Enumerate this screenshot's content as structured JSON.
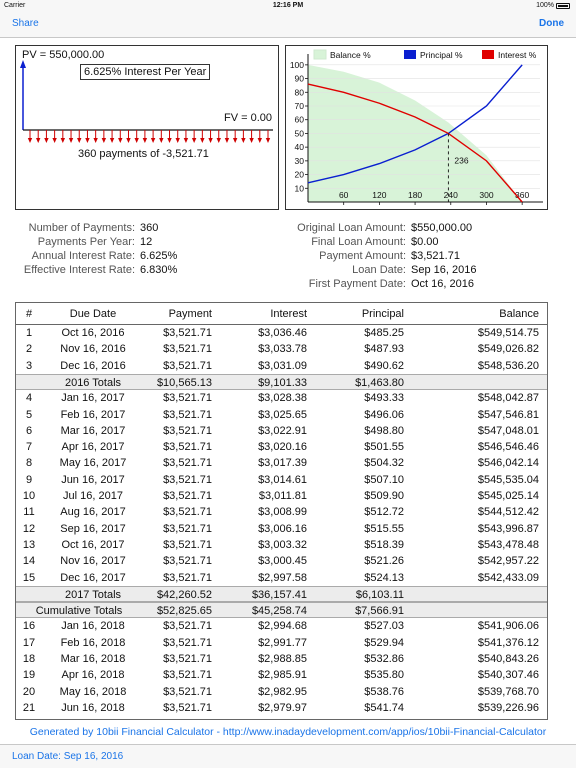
{
  "status": {
    "carrier": "Carrier",
    "time": "12:16 PM",
    "battery": "100%"
  },
  "nav": {
    "share": "Share",
    "done": "Done"
  },
  "timeline": {
    "pv": "PV = 550,000.00",
    "interest": "6.625% Interest Per Year",
    "fv": "FV = 0.00",
    "payments": "360 payments of -3,521.71"
  },
  "chart_data": {
    "type": "line",
    "legend": [
      "Balance %",
      "Principal %",
      "Interest %"
    ],
    "legend_position": "top",
    "colors": {
      "balance": "#d8f3d8",
      "principal": "#0a1fd0",
      "interest": "#e00000"
    },
    "x_ticks": [
      60,
      120,
      180,
      240,
      300,
      360
    ],
    "y_ticks": [
      10,
      20,
      30,
      40,
      50,
      60,
      70,
      80,
      90,
      100
    ],
    "xlim": [
      0,
      390
    ],
    "ylim": [
      0,
      105
    ],
    "crossover_label": "236",
    "crossover_x": 236,
    "series": [
      {
        "name": "Balance %",
        "x": [
          0,
          60,
          120,
          180,
          236,
          300,
          360
        ],
        "y": [
          100,
          95,
          87,
          74,
          58,
          34,
          0
        ]
      },
      {
        "name": "Principal %",
        "x": [
          0,
          60,
          120,
          180,
          236,
          300,
          360
        ],
        "y": [
          14,
          20,
          28,
          38,
          50,
          70,
          100
        ]
      },
      {
        "name": "Interest %",
        "x": [
          0,
          60,
          120,
          180,
          236,
          300,
          360
        ],
        "y": [
          86,
          80,
          72,
          62,
          50,
          30,
          0
        ]
      }
    ]
  },
  "summary_left": [
    {
      "label": "Number of Payments:",
      "value": "360"
    },
    {
      "label": "Payments Per Year:",
      "value": "12"
    },
    {
      "label": "Annual Interest Rate:",
      "value": "6.625%"
    },
    {
      "label": "Effective Interest Rate:",
      "value": "6.830%"
    }
  ],
  "summary_right": [
    {
      "label": "Original Loan Amount:",
      "value": "$550,000.00"
    },
    {
      "label": "Final Loan Amount:",
      "value": "$0.00"
    },
    {
      "label": "Payment Amount:",
      "value": "$3,521.71"
    },
    {
      "label": "Loan Date:",
      "value": "Sep 16, 2016"
    },
    {
      "label": "First Payment Date:",
      "value": "Oct 16, 2016"
    }
  ],
  "table": {
    "headers": [
      "#",
      "Due Date",
      "Payment",
      "Interest",
      "Principal",
      "Balance"
    ],
    "rows": [
      {
        "type": "row",
        "num": "1",
        "date": "Oct 16, 2016",
        "payment": "$3,521.71",
        "interest": "$3,036.46",
        "principal": "$485.25",
        "balance": "$549,514.75"
      },
      {
        "type": "row",
        "num": "2",
        "date": "Nov 16, 2016",
        "payment": "$3,521.71",
        "interest": "$3,033.78",
        "principal": "$487.93",
        "balance": "$549,026.82"
      },
      {
        "type": "row",
        "num": "3",
        "date": "Dec 16, 2016",
        "payment": "$3,521.71",
        "interest": "$3,031.09",
        "principal": "$490.62",
        "balance": "$548,536.20"
      },
      {
        "type": "total",
        "num": "",
        "date": "2016  Totals",
        "payment": "$10,565.13",
        "interest": "$9,101.33",
        "principal": "$1,463.80",
        "balance": ""
      },
      {
        "type": "row",
        "num": "4",
        "date": "Jan 16, 2017",
        "payment": "$3,521.71",
        "interest": "$3,028.38",
        "principal": "$493.33",
        "balance": "$548,042.87"
      },
      {
        "type": "row",
        "num": "5",
        "date": "Feb 16, 2017",
        "payment": "$3,521.71",
        "interest": "$3,025.65",
        "principal": "$496.06",
        "balance": "$547,546.81"
      },
      {
        "type": "row",
        "num": "6",
        "date": "Mar 16, 2017",
        "payment": "$3,521.71",
        "interest": "$3,022.91",
        "principal": "$498.80",
        "balance": "$547,048.01"
      },
      {
        "type": "row",
        "num": "7",
        "date": "Apr 16, 2017",
        "payment": "$3,521.71",
        "interest": "$3,020.16",
        "principal": "$501.55",
        "balance": "$546,546.46"
      },
      {
        "type": "row",
        "num": "8",
        "date": "May 16, 2017",
        "payment": "$3,521.71",
        "interest": "$3,017.39",
        "principal": "$504.32",
        "balance": "$546,042.14"
      },
      {
        "type": "row",
        "num": "9",
        "date": "Jun 16, 2017",
        "payment": "$3,521.71",
        "interest": "$3,014.61",
        "principal": "$507.10",
        "balance": "$545,535.04"
      },
      {
        "type": "row",
        "num": "10",
        "date": "Jul 16, 2017",
        "payment": "$3,521.71",
        "interest": "$3,011.81",
        "principal": "$509.90",
        "balance": "$545,025.14"
      },
      {
        "type": "row",
        "num": "11",
        "date": "Aug 16, 2017",
        "payment": "$3,521.71",
        "interest": "$3,008.99",
        "principal": "$512.72",
        "balance": "$544,512.42"
      },
      {
        "type": "row",
        "num": "12",
        "date": "Sep 16, 2017",
        "payment": "$3,521.71",
        "interest": "$3,006.16",
        "principal": "$515.55",
        "balance": "$543,996.87"
      },
      {
        "type": "row",
        "num": "13",
        "date": "Oct 16, 2017",
        "payment": "$3,521.71",
        "interest": "$3,003.32",
        "principal": "$518.39",
        "balance": "$543,478.48"
      },
      {
        "type": "row",
        "num": "14",
        "date": "Nov 16, 2017",
        "payment": "$3,521.71",
        "interest": "$3,000.45",
        "principal": "$521.26",
        "balance": "$542,957.22"
      },
      {
        "type": "row",
        "num": "15",
        "date": "Dec 16, 2017",
        "payment": "$3,521.71",
        "interest": "$2,997.58",
        "principal": "$524.13",
        "balance": "$542,433.09"
      },
      {
        "type": "total",
        "num": "",
        "date": "2017  Totals",
        "payment": "$42,260.52",
        "interest": "$36,157.41",
        "principal": "$6,103.11",
        "balance": ""
      },
      {
        "type": "cumulative",
        "num": "",
        "date": "Cumulative  Totals",
        "payment": "$52,825.65",
        "interest": "$45,258.74",
        "principal": "$7,566.91",
        "balance": ""
      },
      {
        "type": "row",
        "num": "16",
        "date": "Jan 16, 2018",
        "payment": "$3,521.71",
        "interest": "$2,994.68",
        "principal": "$527.03",
        "balance": "$541,906.06"
      },
      {
        "type": "row",
        "num": "17",
        "date": "Feb 16, 2018",
        "payment": "$3,521.71",
        "interest": "$2,991.77",
        "principal": "$529.94",
        "balance": "$541,376.12"
      },
      {
        "type": "row",
        "num": "18",
        "date": "Mar 16, 2018",
        "payment": "$3,521.71",
        "interest": "$2,988.85",
        "principal": "$532.86",
        "balance": "$540,843.26"
      },
      {
        "type": "row",
        "num": "19",
        "date": "Apr 16, 2018",
        "payment": "$3,521.71",
        "interest": "$2,985.91",
        "principal": "$535.80",
        "balance": "$540,307.46"
      },
      {
        "type": "row",
        "num": "20",
        "date": "May 16, 2018",
        "payment": "$3,521.71",
        "interest": "$2,982.95",
        "principal": "$538.76",
        "balance": "$539,768.70"
      },
      {
        "type": "row",
        "num": "21",
        "date": "Jun 16, 2018",
        "payment": "$3,521.71",
        "interest": "$2,979.97",
        "principal": "$541.74",
        "balance": "$539,226.96"
      }
    ]
  },
  "footer": {
    "generated": "Generated by 10bii Financial Calculator - http://www.inadaydevelopment.com/app/ios/10bii-Financial-Calculator"
  },
  "bottom": {
    "loan_date": "Loan Date:  Sep 16, 2016"
  },
  "icons": {
    "battery": "battery-icon",
    "arrow": "down-arrow-icon"
  }
}
